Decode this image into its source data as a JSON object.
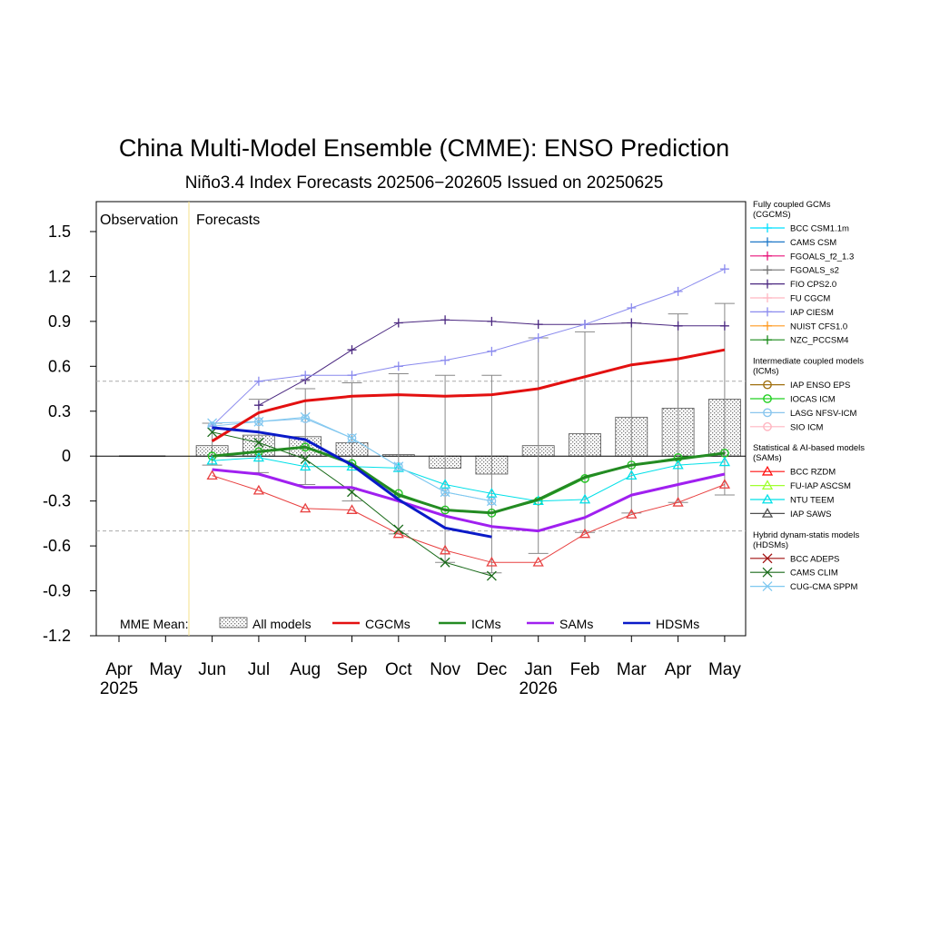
{
  "chart_data": {
    "type": "line",
    "title": "China Multi-Model Ensemble (CMME): ENSO Prediction",
    "subtitle": "Niño3.4 Index Forecasts 202506−202605 Issued on 20250625",
    "period_labels": {
      "observation": "Observation",
      "forecasts": "Forecasts"
    },
    "x_ticks": [
      {
        "label": "Apr",
        "sub": "2025"
      },
      {
        "label": "May",
        "sub": ""
      },
      {
        "label": "Jun",
        "sub": ""
      },
      {
        "label": "Jul",
        "sub": ""
      },
      {
        "label": "Aug",
        "sub": ""
      },
      {
        "label": "Sep",
        "sub": ""
      },
      {
        "label": "Oct",
        "sub": ""
      },
      {
        "label": "Nov",
        "sub": ""
      },
      {
        "label": "Dec",
        "sub": ""
      },
      {
        "label": "Jan",
        "sub": "2026"
      },
      {
        "label": "Feb",
        "sub": ""
      },
      {
        "label": "Mar",
        "sub": ""
      },
      {
        "label": "Apr",
        "sub": ""
      },
      {
        "label": "May",
        "sub": ""
      }
    ],
    "y_ticks": [
      "1.5",
      "1.2",
      "0.9",
      "0.6",
      "0.3",
      "0",
      "-0.3",
      "-0.6",
      "-0.9",
      "-1.2"
    ],
    "ylim": [
      -1.2,
      1.7
    ],
    "reference_lines": [
      0.5,
      -0.5
    ],
    "observation": [
      0,
      0
    ],
    "mme_label": "MME Mean:",
    "mme_legend": [
      {
        "label": "All models",
        "style": "bar"
      },
      {
        "label": "CGCMs",
        "color": "#e31010"
      },
      {
        "label": "ICMs",
        "color": "#238b22"
      },
      {
        "label": "SAMs",
        "color": "#a020f0"
      },
      {
        "label": "HDSMs",
        "color": "#0a1ac8"
      }
    ],
    "all_models_bars": [
      0.07,
      0.14,
      0.13,
      0.09,
      0.01,
      -0.08,
      -0.12,
      0.07,
      0.15,
      0.26,
      0.32,
      0.38
    ],
    "spread_high": [
      0.22,
      0.38,
      0.45,
      0.49,
      0.55,
      0.54,
      0.54,
      0.79,
      0.83,
      0.89,
      0.95,
      1.02
    ],
    "spread_low": [
      -0.06,
      -0.11,
      -0.19,
      -0.3,
      -0.52,
      -0.71,
      -0.78,
      -0.65,
      -0.51,
      -0.38,
      -0.31,
      -0.26
    ],
    "mme_series": [
      {
        "name": "CGCMs",
        "color": "#e31010",
        "values": [
          0.1,
          0.29,
          0.37,
          0.4,
          0.41,
          0.4,
          0.41,
          0.45,
          0.53,
          0.61,
          0.65,
          0.71
        ]
      },
      {
        "name": "ICMs",
        "color": "#238b22",
        "values": [
          0.0,
          0.03,
          0.06,
          -0.05,
          -0.26,
          -0.36,
          -0.38,
          -0.29,
          -0.14,
          -0.06,
          -0.02,
          0.02
        ]
      },
      {
        "name": "SAMs",
        "color": "#a020f0",
        "values": [
          -0.09,
          -0.12,
          -0.21,
          -0.21,
          -0.3,
          -0.4,
          -0.47,
          -0.5,
          -0.41,
          -0.26,
          -0.19,
          -0.12
        ]
      },
      {
        "name": "HDSMs",
        "color": "#0a1ac8",
        "values": [
          0.19,
          0.16,
          0.11,
          -0.06,
          -0.29,
          -0.48,
          -0.54,
          null,
          null,
          null,
          null,
          null
        ]
      }
    ],
    "model_series": [
      {
        "name": "FIO CPS2.0",
        "color": "#4b2880",
        "marker": "plus",
        "values": [
          null,
          0.34,
          0.51,
          0.71,
          0.89,
          0.91,
          0.9,
          0.88,
          0.88,
          0.89,
          0.87,
          0.87
        ]
      },
      {
        "name": "IAP CIESM",
        "color": "#8a8aee",
        "marker": "plus",
        "values": [
          0.2,
          0.5,
          0.54,
          0.54,
          0.6,
          0.64,
          0.7,
          0.79,
          0.88,
          0.99,
          1.1,
          1.25
        ]
      },
      {
        "name": "IOCAS ICM",
        "color": "#22c522",
        "marker": "circle",
        "values": [
          0.0,
          0.03,
          0.06,
          -0.05,
          -0.25,
          -0.36,
          -0.38,
          -0.3,
          -0.15,
          -0.06,
          -0.01,
          0.02
        ]
      },
      {
        "name": "LASG NFSV-ICM",
        "color": "#8ac6ee",
        "marker": "circle",
        "values": [
          0.2,
          0.23,
          0.25,
          0.12,
          -0.07,
          -0.24,
          -0.3,
          null,
          null,
          null,
          null,
          null
        ]
      },
      {
        "name": "BCC RZDM",
        "color": "#e84040",
        "marker": "triangle",
        "values": [
          -0.13,
          -0.23,
          -0.35,
          -0.36,
          -0.52,
          -0.63,
          -0.71,
          -0.71,
          -0.52,
          -0.39,
          -0.31,
          -0.19
        ]
      },
      {
        "name": "NTU TEEM",
        "color": "#00e0e8",
        "marker": "triangle",
        "values": [
          -0.03,
          -0.01,
          -0.07,
          -0.07,
          -0.08,
          -0.19,
          -0.25,
          -0.3,
          -0.29,
          -0.13,
          -0.06,
          -0.04
        ]
      },
      {
        "name": "CAMS CLIM",
        "color": "#1a6b1a",
        "marker": "x",
        "values": [
          0.16,
          0.09,
          -0.02,
          -0.24,
          -0.49,
          -0.71,
          -0.8,
          null,
          null,
          null,
          null,
          null
        ]
      },
      {
        "name": "CUG-CMA SPPM",
        "color": "#7ec8f0",
        "marker": "x",
        "values": [
          0.22,
          0.23,
          0.26,
          0.12,
          -0.07,
          -0.24,
          -0.3,
          null,
          null,
          null,
          null,
          null
        ]
      }
    ],
    "legend_groups": [
      {
        "title": "Fully coupled GCMs (CGCMS)",
        "items": [
          {
            "label": "BCC CSM1.1m",
            "color": "#00e0ff",
            "marker": "plus"
          },
          {
            "label": "CAMS CSM",
            "color": "#1e78c8",
            "marker": "plus"
          },
          {
            "label": "FGOALS_f2_1.3",
            "color": "#e8147a",
            "marker": "plus"
          },
          {
            "label": "FGOALS_s2",
            "color": "#707070",
            "marker": "plus"
          },
          {
            "label": "FIO CPS2.0",
            "color": "#4b2880",
            "marker": "plus"
          },
          {
            "label": "FU CGCM",
            "color": "#ffb6c1",
            "marker": "plus"
          },
          {
            "label": "IAP CIESM",
            "color": "#8a8aee",
            "marker": "plus"
          },
          {
            "label": "NUIST CFS1.0",
            "color": "#ff9a20",
            "marker": "plus"
          },
          {
            "label": "NZC_PCCSM4",
            "color": "#1a8a1a",
            "marker": "plus"
          }
        ]
      },
      {
        "title": "Intermediate coupled models (ICMs)",
        "items": [
          {
            "label": "IAP ENSO EPS",
            "color": "#a07010",
            "marker": "circle"
          },
          {
            "label": "IOCAS ICM",
            "color": "#22d022",
            "marker": "circle"
          },
          {
            "label": "LASG NFSV-ICM",
            "color": "#8ac6ee",
            "marker": "circle"
          },
          {
            "label": "SIO ICM",
            "color": "#ffb6c1",
            "marker": "circle"
          }
        ]
      },
      {
        "title": "Statistical & AI-based models (SAMs)",
        "items": [
          {
            "label": "BCC RZDM",
            "color": "#ff1010",
            "marker": "triangle"
          },
          {
            "label": "FU-IAP ASCSM",
            "color": "#a0ff30",
            "marker": "triangle"
          },
          {
            "label": "NTU TEEM",
            "color": "#00e0e8",
            "marker": "triangle"
          },
          {
            "label": "IAP SAWS",
            "color": "#505050",
            "marker": "triangle"
          }
        ]
      },
      {
        "title": "Hybrid dynam-statis models (HDSMs)",
        "items": [
          {
            "label": "BCC ADEPS",
            "color": "#a01010",
            "marker": "x"
          },
          {
            "label": "CAMS CLIM",
            "color": "#1a6b1a",
            "marker": "x"
          },
          {
            "label": "CUG-CMA SPPM",
            "color": "#7ec8f0",
            "marker": "x"
          }
        ]
      }
    ]
  }
}
